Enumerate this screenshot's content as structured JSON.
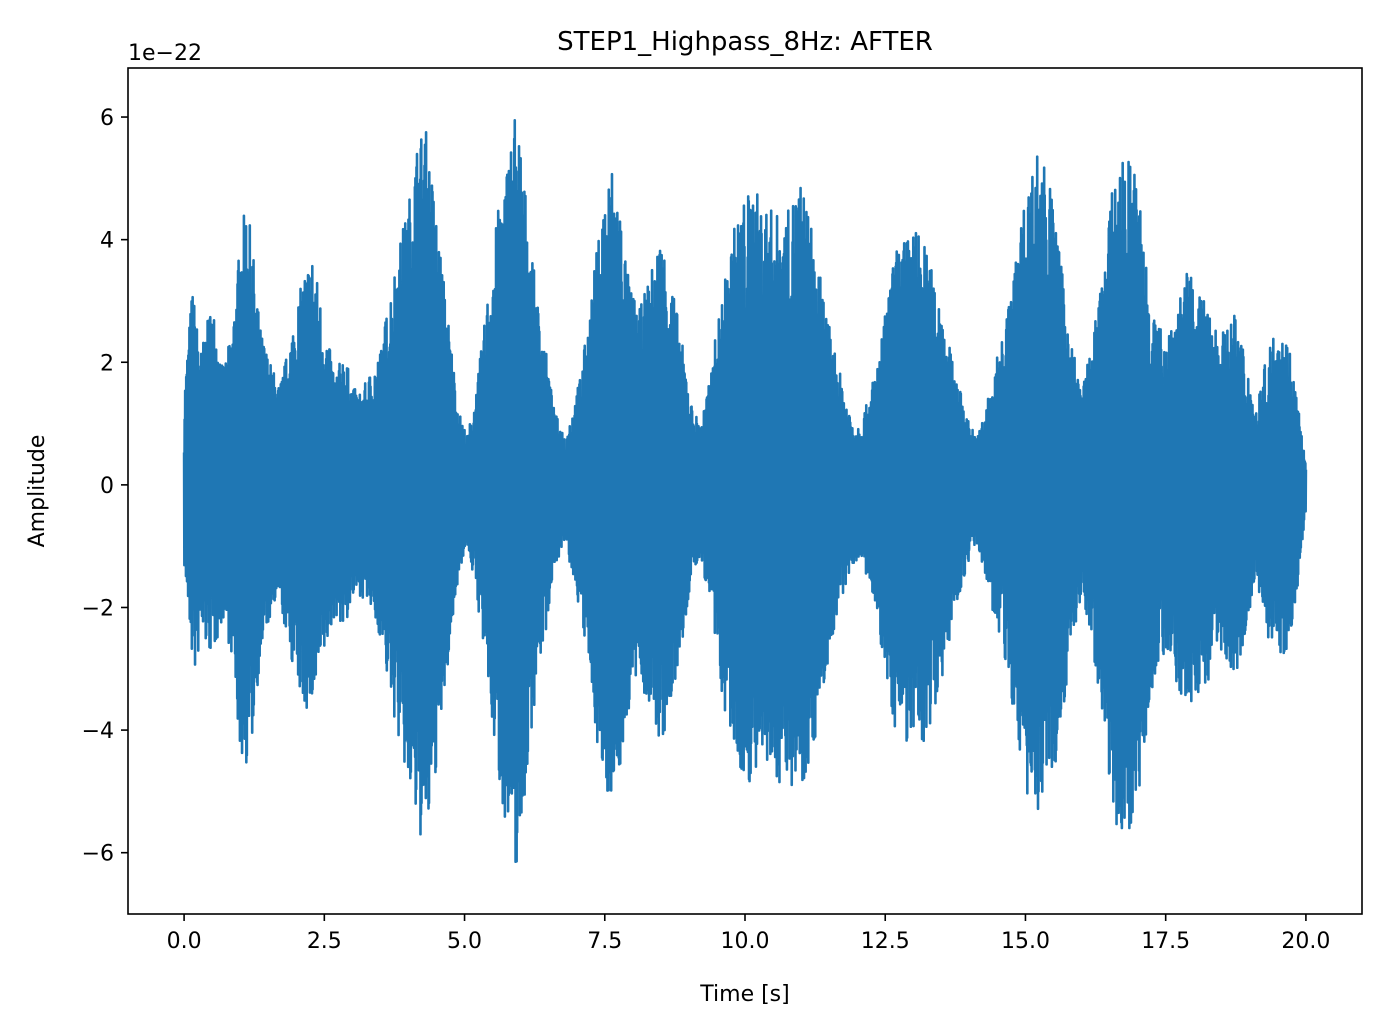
{
  "chart_data": {
    "type": "line",
    "title": "STEP1_Highpass_8Hz: AFTER",
    "xlabel": "Time [s]",
    "ylabel": "Amplitude",
    "y_offset_label": "1e−22",
    "xlim": [
      -1.0,
      21.0
    ],
    "ylim": [
      -7.0,
      6.8
    ],
    "x_ticks": [
      0.0,
      2.5,
      5.0,
      7.5,
      10.0,
      12.5,
      15.0,
      17.5,
      20.0
    ],
    "x_tick_labels": [
      "0.0",
      "2.5",
      "5.0",
      "7.5",
      "10.0",
      "12.5",
      "15.0",
      "17.5",
      "20.0"
    ],
    "y_ticks": [
      -6,
      -4,
      -2,
      0,
      2,
      4,
      6
    ],
    "y_tick_labels": [
      "−6",
      "−4",
      "−2",
      "0",
      "2",
      "4",
      "6"
    ],
    "grid": false,
    "series": [
      {
        "color": "#1f77b4",
        "x_range": [
          0.0,
          20.0
        ],
        "envelope": {
          "x": [
            0.0,
            0.15,
            0.2,
            0.3,
            0.5,
            0.7,
            0.85,
            1.0,
            1.1,
            1.2,
            1.35,
            1.5,
            1.7,
            1.85,
            2.0,
            2.15,
            2.3,
            2.5,
            2.7,
            2.85,
            3.0,
            3.15,
            3.3,
            3.5,
            3.7,
            3.85,
            4.0,
            4.15,
            4.3,
            4.45,
            4.6,
            4.8,
            4.9,
            5.05,
            5.2,
            5.35,
            5.5,
            5.6,
            5.75,
            5.9,
            6.0,
            6.15,
            6.3,
            6.45,
            6.6,
            6.8,
            7.0,
            7.2,
            7.35,
            7.5,
            7.65,
            7.8,
            7.9,
            8.1,
            8.3,
            8.5,
            8.7,
            8.9,
            9.05,
            9.2,
            9.35,
            9.5,
            9.65,
            9.8,
            10.0,
            10.15,
            10.3,
            10.5,
            10.7,
            10.9,
            11.0,
            11.15,
            11.3,
            11.5,
            11.7,
            11.9,
            12.05,
            12.2,
            12.4,
            12.55,
            12.7,
            12.85,
            13.0,
            13.15,
            13.3,
            13.5,
            13.7,
            13.85,
            14.0,
            14.15,
            14.35,
            14.55,
            14.75,
            14.9,
            15.05,
            15.2,
            15.35,
            15.5,
            15.65,
            15.8,
            16.0,
            16.2,
            16.4,
            16.5,
            16.6,
            16.75,
            16.9,
            17.05,
            17.2,
            17.35,
            17.5,
            17.7,
            17.9,
            18.05,
            18.25,
            18.4,
            18.55,
            18.75,
            18.95,
            19.1,
            19.3,
            19.5,
            19.7,
            19.85,
            20.0
          ],
          "y": [
            1.5,
            3.3,
            2.8,
            2.2,
            3.0,
            1.9,
            2.5,
            4.0,
            4.6,
            4.1,
            2.6,
            2.1,
            1.6,
            2.2,
            2.9,
            3.5,
            3.8,
            2.6,
            1.8,
            2.2,
            1.6,
            1.5,
            1.8,
            2.2,
            3.3,
            4.0,
            4.6,
            5.6,
            5.9,
            4.8,
            3.6,
            2.0,
            1.2,
            0.8,
            1.5,
            2.6,
            3.8,
            4.5,
            5.2,
            6.2,
            5.6,
            4.2,
            3.0,
            2.2,
            1.2,
            0.8,
            1.5,
            2.6,
            3.8,
            4.8,
            5.3,
            4.4,
            3.5,
            2.8,
            3.4,
            4.1,
            3.3,
            2.2,
            1.3,
            1.0,
            1.6,
            2.6,
            3.4,
            4.2,
            4.7,
            4.9,
            4.6,
            4.5,
            4.3,
            4.8,
            5.0,
            4.4,
            3.6,
            2.6,
            1.8,
            1.1,
            1.0,
            1.4,
            2.2,
            3.1,
            3.9,
            4.0,
            4.2,
            4.1,
            3.6,
            3.0,
            2.0,
            1.5,
            1.0,
            0.8,
            1.5,
            2.3,
            3.2,
            4.2,
            4.9,
            5.5,
            5.3,
            4.6,
            3.5,
            2.5,
            1.5,
            2.4,
            3.6,
            4.5,
            5.1,
            5.3,
            5.4,
            4.6,
            3.4,
            2.6,
            2.5,
            3.0,
            3.5,
            3.2,
            2.9,
            2.6,
            2.5,
            2.8,
            2.0,
            1.2,
            2.1,
            2.7,
            2.3,
            1.4,
            0.3
          ],
          "lower": [
            -1.3,
            -2.9,
            -3.1,
            -2.5,
            -2.8,
            -2.2,
            -2.8,
            -4.4,
            -4.6,
            -4.3,
            -2.9,
            -2.3,
            -1.9,
            -2.6,
            -3.2,
            -3.7,
            -3.6,
            -2.8,
            -2.1,
            -2.4,
            -1.9,
            -1.8,
            -2.0,
            -2.5,
            -3.6,
            -4.3,
            -5.0,
            -5.6,
            -6.0,
            -5.0,
            -3.8,
            -2.2,
            -1.4,
            -1.0,
            -1.7,
            -2.8,
            -4.0,
            -4.8,
            -5.6,
            -6.4,
            -5.8,
            -4.4,
            -3.1,
            -2.4,
            -1.3,
            -1.0,
            -1.8,
            -2.9,
            -4.1,
            -5.1,
            -5.0,
            -4.6,
            -3.8,
            -3.1,
            -3.7,
            -4.3,
            -3.6,
            -2.5,
            -1.5,
            -1.2,
            -1.8,
            -2.9,
            -3.8,
            -4.4,
            -4.9,
            -4.8,
            -4.7,
            -4.8,
            -4.9,
            -4.9,
            -4.9,
            -4.6,
            -3.9,
            -2.8,
            -2.0,
            -1.3,
            -1.2,
            -1.6,
            -2.5,
            -3.4,
            -4.1,
            -4.2,
            -4.2,
            -4.4,
            -3.9,
            -3.2,
            -2.3,
            -1.7,
            -1.2,
            -1.0,
            -1.8,
            -2.6,
            -3.5,
            -4.5,
            -5.2,
            -5.4,
            -5.0,
            -4.8,
            -3.8,
            -2.8,
            -1.8,
            -2.7,
            -3.9,
            -4.8,
            -5.5,
            -5.9,
            -5.5,
            -4.9,
            -3.7,
            -2.9,
            -2.8,
            -3.3,
            -3.7,
            -3.5,
            -3.2,
            -2.9,
            -2.8,
            -3.1,
            -2.3,
            -1.5,
            -2.4,
            -3.0,
            -2.6,
            -1.7,
            -0.4
          ]
        }
      }
    ]
  }
}
